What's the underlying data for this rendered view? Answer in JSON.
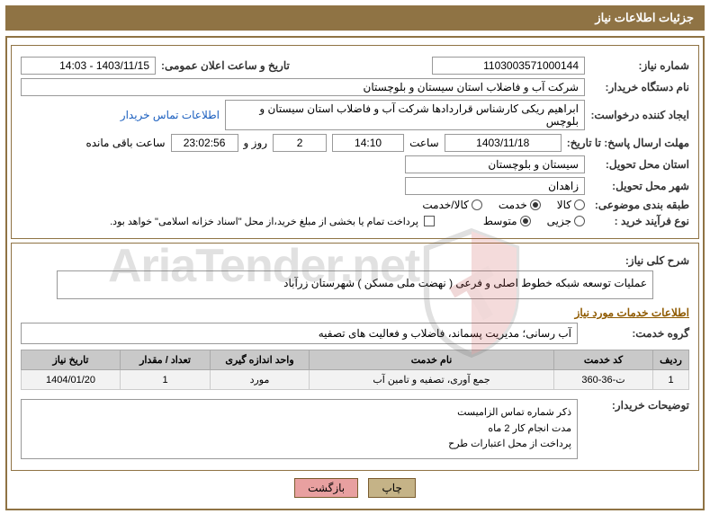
{
  "header": {
    "title": "جزئیات اطلاعات نیاز"
  },
  "fields": {
    "need_no_label": "شماره نیاز:",
    "need_no": "1103003571000144",
    "publish_label": "تاریخ و ساعت اعلان عمومی:",
    "publish_val": "1403/11/15 - 14:03",
    "buyer_label": "نام دستگاه خریدار:",
    "buyer_val": "شرکت آب و فاضلاب استان سیستان و بلوچستان",
    "requester_label": "ایجاد کننده درخواست:",
    "requester_val": "ابراهیم ریکی کارشناس قراردادها شرکت آب و فاضلاب استان سیستان و بلوچس",
    "contact_link": "اطلاعات تماس خریدار",
    "deadline_label": "مهلت ارسال پاسخ: تا تاریخ:",
    "deadline_date": "1403/11/18",
    "time_label": "ساعت",
    "deadline_time": "14:10",
    "days_count": "2",
    "days_label": "روز و",
    "hms": "23:02:56",
    "remain_label": "ساعت باقی مانده",
    "province_label": "استان محل تحویل:",
    "province_val": "سیستان و بلوچستان",
    "city_label": "شهر محل تحویل:",
    "city_val": "زاهدان",
    "cat_label": "طبقه بندی موضوعی:",
    "cat_goods": "کالا",
    "cat_service": "خدمت",
    "cat_both": "کالا/خدمت",
    "proc_label": "نوع فرآیند خرید :",
    "proc_small": "جزیی",
    "proc_medium": "متوسط",
    "pay_note": "پرداخت تمام یا بخشی از مبلغ خرید،از محل \"اسناد خزانه اسلامی\" خواهد بود."
  },
  "desc": {
    "overall_label": "شرح کلی نیاز:",
    "overall_val": "عملیات توسعه شبکه خطوط اصلی و فرعی  ( نهضت ملی مسکن ) شهرستان زرآباد",
    "services_title": "اطلاعات خدمات مورد نیاز",
    "group_label": "گروه خدمت:",
    "group_val": "آب رسانی؛ مدیریت پسماند، فاضلاب و فعالیت های تصفیه"
  },
  "table": {
    "cols": [
      "ردیف",
      "کد خدمت",
      "نام خدمت",
      "واحد اندازه گیری",
      "تعداد / مقدار",
      "تاریخ نیاز"
    ],
    "rows": [
      [
        "1",
        "ت-36-360",
        "جمع آوری، تصفیه و تامین آب",
        "مورد",
        "1",
        "1404/01/20"
      ]
    ],
    "col_widths": [
      "40px",
      "110px",
      "auto",
      "110px",
      "100px",
      "110px"
    ]
  },
  "notes": {
    "label": "توضیحات خریدار:",
    "lines": [
      "ذکر شماره تماس الزامیست",
      "مدت انجام کار 2 ماه",
      "پرداخت از محل اعتبارات طرح"
    ]
  },
  "buttons": {
    "print": "چاپ",
    "back": "بازگشت"
  },
  "watermark": "AriaTender.net",
  "colors": {
    "brand": "#8f7344",
    "th_bg": "#c9c9c9",
    "td_bg": "#f2f2f2",
    "link": "#1b5fbf"
  }
}
